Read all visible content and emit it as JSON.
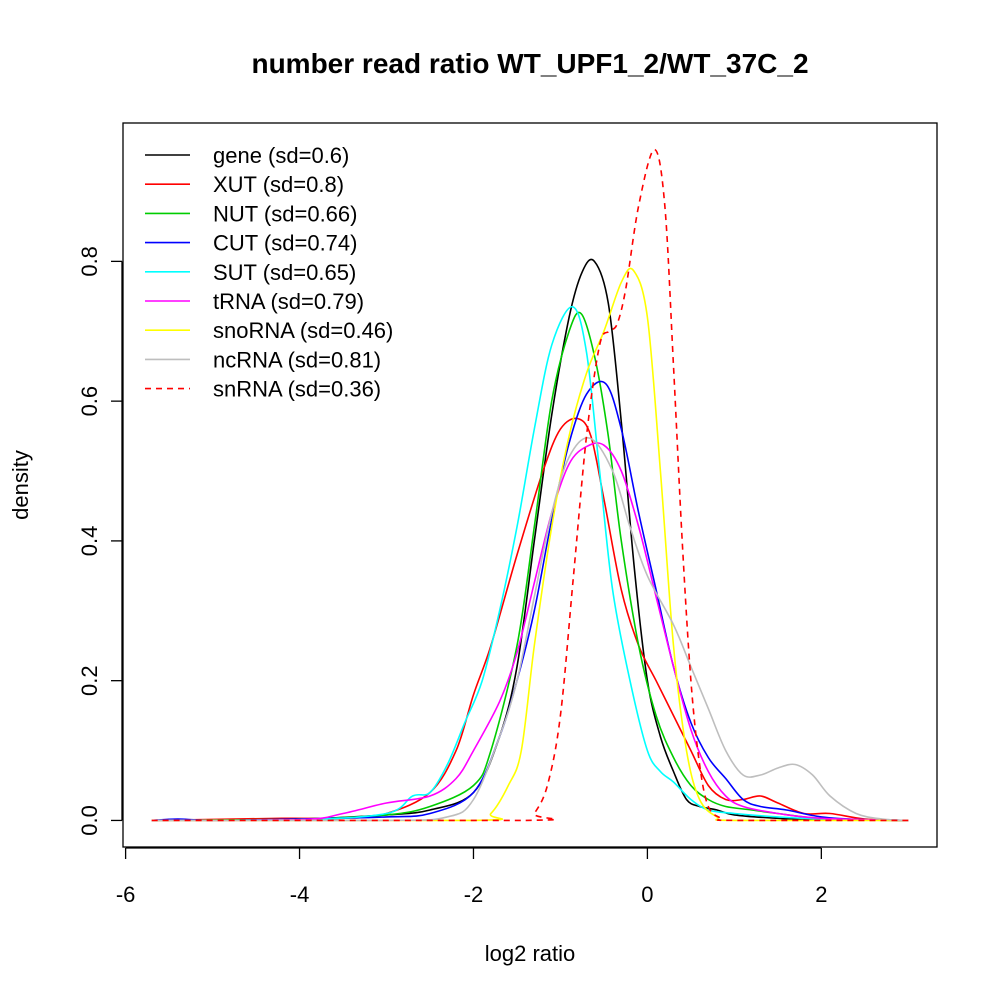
{
  "chart_data": {
    "type": "line",
    "title": "number read ratio WT_UPF1_2/WT_37C_2",
    "xlabel": "log2 ratio",
    "ylabel": "density",
    "xlim": [
      -6.03,
      3.33
    ],
    "ylim": [
      -0.038,
      0.998
    ],
    "xticks": [
      -6,
      -4,
      -2,
      0,
      2
    ],
    "xtick_labels": [
      "-6",
      "-4",
      "-2",
      "0",
      "2"
    ],
    "yticks": [
      0,
      0.2,
      0.4,
      0.6,
      0.8
    ],
    "ytick_labels": [
      "0.0",
      "0.2",
      "0.4",
      "0.6",
      "0.8"
    ],
    "grid": false,
    "legend_position": "top-left",
    "series": [
      {
        "name": "gene (sd=0.6)",
        "color": "#000000",
        "dashed": false,
        "points": [
          [
            -5.7,
            0
          ],
          [
            -4,
            0.002
          ],
          [
            -3,
            0.008
          ],
          [
            -2.5,
            0.015
          ],
          [
            -2,
            0.04
          ],
          [
            -1.7,
            0.12
          ],
          [
            -1.5,
            0.22
          ],
          [
            -1.3,
            0.4
          ],
          [
            -1.1,
            0.58
          ],
          [
            -0.9,
            0.72
          ],
          [
            -0.75,
            0.785
          ],
          [
            -0.61,
            0.8
          ],
          [
            -0.45,
            0.74
          ],
          [
            -0.3,
            0.57
          ],
          [
            -0.15,
            0.36
          ],
          [
            0,
            0.2
          ],
          [
            0.15,
            0.12
          ],
          [
            0.3,
            0.07
          ],
          [
            0.45,
            0.03
          ],
          [
            0.6,
            0.02
          ],
          [
            0.8,
            0.015
          ],
          [
            1,
            0.008
          ],
          [
            1.5,
            0.003
          ],
          [
            2,
            0.001
          ],
          [
            3,
            0
          ]
        ]
      },
      {
        "name": "XUT (sd=0.8)",
        "color": "#ff0000",
        "dashed": false,
        "points": [
          [
            -5.7,
            0
          ],
          [
            -4.2,
            0.003
          ],
          [
            -3.5,
            0.003
          ],
          [
            -3,
            0.01
          ],
          [
            -2.5,
            0.04
          ],
          [
            -2.2,
            0.1
          ],
          [
            -2,
            0.18
          ],
          [
            -1.8,
            0.25
          ],
          [
            -1.5,
            0.38
          ],
          [
            -1.2,
            0.5
          ],
          [
            -1,
            0.56
          ],
          [
            -0.8,
            0.575
          ],
          [
            -0.65,
            0.55
          ],
          [
            -0.5,
            0.46
          ],
          [
            -0.3,
            0.33
          ],
          [
            -0.1,
            0.25
          ],
          [
            0.1,
            0.2
          ],
          [
            0.3,
            0.15
          ],
          [
            0.5,
            0.1
          ],
          [
            0.7,
            0.05
          ],
          [
            0.9,
            0.03
          ],
          [
            1.1,
            0.03
          ],
          [
            1.3,
            0.035
          ],
          [
            1.5,
            0.025
          ],
          [
            1.8,
            0.01
          ],
          [
            2.1,
            0.01
          ],
          [
            2.5,
            0.002
          ],
          [
            3,
            0
          ]
        ]
      },
      {
        "name": "NUT (sd=0.66)",
        "color": "#00cd00",
        "dashed": false,
        "points": [
          [
            -5.7,
            0
          ],
          [
            -4,
            0.002
          ],
          [
            -3,
            0.008
          ],
          [
            -2.5,
            0.02
          ],
          [
            -2,
            0.05
          ],
          [
            -1.8,
            0.1
          ],
          [
            -1.5,
            0.25
          ],
          [
            -1.3,
            0.42
          ],
          [
            -1.1,
            0.6
          ],
          [
            -0.9,
            0.7
          ],
          [
            -0.76,
            0.725
          ],
          [
            -0.6,
            0.66
          ],
          [
            -0.45,
            0.55
          ],
          [
            -0.3,
            0.4
          ],
          [
            -0.1,
            0.25
          ],
          [
            0.1,
            0.15
          ],
          [
            0.3,
            0.09
          ],
          [
            0.5,
            0.05
          ],
          [
            0.7,
            0.03
          ],
          [
            0.9,
            0.02
          ],
          [
            1.2,
            0.015
          ],
          [
            1.5,
            0.01
          ],
          [
            2,
            0.003
          ],
          [
            3,
            0
          ]
        ]
      },
      {
        "name": "CUT (sd=0.74)",
        "color": "#0000ff",
        "dashed": false,
        "points": [
          [
            -5.7,
            0
          ],
          [
            -5.4,
            0.002
          ],
          [
            -5,
            0
          ],
          [
            -4,
            0.002
          ],
          [
            -3,
            0.005
          ],
          [
            -2.5,
            0.01
          ],
          [
            -2,
            0.04
          ],
          [
            -1.7,
            0.12
          ],
          [
            -1.5,
            0.2
          ],
          [
            -1.3,
            0.3
          ],
          [
            -1.1,
            0.43
          ],
          [
            -0.9,
            0.54
          ],
          [
            -0.7,
            0.61
          ],
          [
            -0.48,
            0.625
          ],
          [
            -0.3,
            0.56
          ],
          [
            -0.1,
            0.44
          ],
          [
            0.1,
            0.33
          ],
          [
            0.3,
            0.22
          ],
          [
            0.5,
            0.14
          ],
          [
            0.7,
            0.09
          ],
          [
            0.9,
            0.06
          ],
          [
            1.1,
            0.03
          ],
          [
            1.3,
            0.02
          ],
          [
            1.6,
            0.015
          ],
          [
            2,
            0.005
          ],
          [
            2.5,
            0.001
          ],
          [
            3,
            0
          ]
        ]
      },
      {
        "name": "SUT (sd=0.65)",
        "color": "#00ffff",
        "dashed": false,
        "points": [
          [
            -5.7,
            0
          ],
          [
            -4,
            0.001
          ],
          [
            -3,
            0.01
          ],
          [
            -2.7,
            0.035
          ],
          [
            -2.5,
            0.04
          ],
          [
            -2.3,
            0.08
          ],
          [
            -2.1,
            0.14
          ],
          [
            -1.9,
            0.2
          ],
          [
            -1.7,
            0.3
          ],
          [
            -1.5,
            0.42
          ],
          [
            -1.3,
            0.56
          ],
          [
            -1.1,
            0.68
          ],
          [
            -0.86,
            0.735
          ],
          [
            -0.7,
            0.67
          ],
          [
            -0.55,
            0.5
          ],
          [
            -0.4,
            0.33
          ],
          [
            -0.2,
            0.2
          ],
          [
            0,
            0.1
          ],
          [
            0.15,
            0.07
          ],
          [
            0.3,
            0.055
          ],
          [
            0.5,
            0.03
          ],
          [
            0.7,
            0.015
          ],
          [
            1,
            0.01
          ],
          [
            1.5,
            0.005
          ],
          [
            2,
            0.002
          ],
          [
            3,
            0
          ]
        ]
      },
      {
        "name": "tRNA (sd=0.79)",
        "color": "#ff00ff",
        "dashed": false,
        "points": [
          [
            -5.7,
            0
          ],
          [
            -4,
            0.001
          ],
          [
            -3.5,
            0.01
          ],
          [
            -3,
            0.025
          ],
          [
            -2.5,
            0.035
          ],
          [
            -2.2,
            0.06
          ],
          [
            -2,
            0.1
          ],
          [
            -1.7,
            0.17
          ],
          [
            -1.5,
            0.24
          ],
          [
            -1.3,
            0.34
          ],
          [
            -1.1,
            0.44
          ],
          [
            -0.9,
            0.51
          ],
          [
            -0.7,
            0.535
          ],
          [
            -0.5,
            0.537
          ],
          [
            -0.3,
            0.5
          ],
          [
            -0.1,
            0.42
          ],
          [
            0.1,
            0.32
          ],
          [
            0.3,
            0.22
          ],
          [
            0.5,
            0.13
          ],
          [
            0.7,
            0.07
          ],
          [
            0.9,
            0.035
          ],
          [
            1.1,
            0.02
          ],
          [
            1.5,
            0.01
          ],
          [
            2,
            0.003
          ],
          [
            3,
            0
          ]
        ]
      },
      {
        "name": "snoRNA (sd=0.46)",
        "color": "#ffff00",
        "dashed": false,
        "points": [
          [
            -5.7,
            0
          ],
          [
            -2,
            0
          ],
          [
            -1.8,
            0.01
          ],
          [
            -1.6,
            0.05
          ],
          [
            -1.45,
            0.1
          ],
          [
            -1.3,
            0.25
          ],
          [
            -1.1,
            0.42
          ],
          [
            -0.9,
            0.55
          ],
          [
            -0.7,
            0.64
          ],
          [
            -0.5,
            0.7
          ],
          [
            -0.3,
            0.77
          ],
          [
            -0.16,
            0.787
          ],
          [
            0,
            0.72
          ],
          [
            0.15,
            0.5
          ],
          [
            0.3,
            0.25
          ],
          [
            0.45,
            0.1
          ],
          [
            0.6,
            0.03
          ],
          [
            0.8,
            0.005
          ],
          [
            1,
            0
          ],
          [
            3,
            0
          ]
        ]
      },
      {
        "name": "ncRNA (sd=0.81)",
        "color": "#bebebe",
        "dashed": false,
        "points": [
          [
            -5.7,
            0
          ],
          [
            -3,
            0
          ],
          [
            -2.3,
            0.005
          ],
          [
            -2,
            0.03
          ],
          [
            -1.7,
            0.12
          ],
          [
            -1.5,
            0.2
          ],
          [
            -1.3,
            0.32
          ],
          [
            -1.1,
            0.44
          ],
          [
            -0.9,
            0.52
          ],
          [
            -0.66,
            0.547
          ],
          [
            -0.4,
            0.5
          ],
          [
            -0.2,
            0.42
          ],
          [
            0,
            0.35
          ],
          [
            0.3,
            0.28
          ],
          [
            0.5,
            0.22
          ],
          [
            0.7,
            0.16
          ],
          [
            0.9,
            0.1
          ],
          [
            1.1,
            0.065
          ],
          [
            1.3,
            0.065
          ],
          [
            1.5,
            0.075
          ],
          [
            1.7,
            0.08
          ],
          [
            1.9,
            0.065
          ],
          [
            2.1,
            0.035
          ],
          [
            2.4,
            0.01
          ],
          [
            2.7,
            0.002
          ],
          [
            3,
            0
          ]
        ]
      },
      {
        "name": "snRNA (sd=0.36)",
        "color": "#ff0000",
        "dashed": true,
        "points": [
          [
            -5.7,
            0
          ],
          [
            -1.4,
            0
          ],
          [
            -1.3,
            0.01
          ],
          [
            -1.15,
            0.05
          ],
          [
            -1,
            0.15
          ],
          [
            -0.85,
            0.35
          ],
          [
            -0.7,
            0.55
          ],
          [
            -0.55,
            0.68
          ],
          [
            -0.44,
            0.7
          ],
          [
            -0.35,
            0.71
          ],
          [
            -0.25,
            0.76
          ],
          [
            -0.1,
            0.88
          ],
          [
            0.08,
            0.96
          ],
          [
            0.2,
            0.88
          ],
          [
            0.3,
            0.65
          ],
          [
            0.4,
            0.4
          ],
          [
            0.5,
            0.2
          ],
          [
            0.6,
            0.08
          ],
          [
            0.7,
            0.02
          ],
          [
            0.85,
            0.003
          ],
          [
            1,
            0
          ],
          [
            3,
            0
          ]
        ]
      }
    ]
  }
}
